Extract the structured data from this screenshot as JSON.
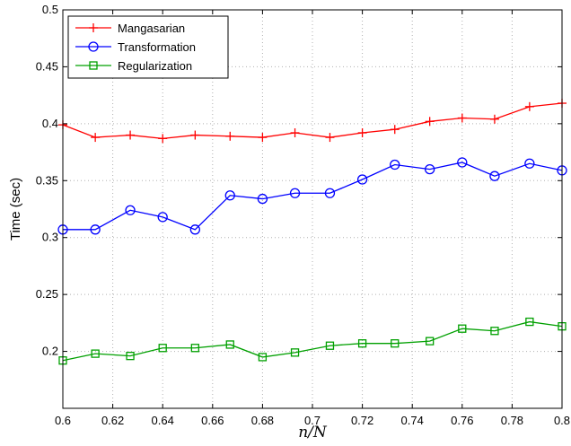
{
  "chart_data": {
    "type": "line",
    "title": "",
    "xlabel": "n/N",
    "ylabel": "Time (sec)",
    "xlim": [
      0.6,
      0.8
    ],
    "ylim": [
      0.15,
      0.5
    ],
    "grid": true,
    "legend_position": "top-left",
    "x": [
      0.6,
      0.613,
      0.627,
      0.64,
      0.653,
      0.667,
      0.68,
      0.693,
      0.707,
      0.72,
      0.733,
      0.747,
      0.76,
      0.773,
      0.787,
      0.8
    ],
    "xticks": [
      "0.6",
      "0.62",
      "0.64",
      "0.66",
      "0.68",
      "0.7",
      "0.72",
      "0.74",
      "0.76",
      "0.78",
      "0.8"
    ],
    "xtick_values": [
      0.6,
      0.62,
      0.64,
      0.66,
      0.68,
      0.7,
      0.72,
      0.74,
      0.76,
      0.78,
      0.8
    ],
    "yticks": [
      "0.2",
      "0.25",
      "0.3",
      "0.35",
      "0.4",
      "0.45",
      "0.5"
    ],
    "ytick_values": [
      0.2,
      0.25,
      0.3,
      0.35,
      0.4,
      0.45,
      0.5
    ],
    "series": [
      {
        "name": "Mangasarian",
        "color": "#ff0000",
        "marker": "plus",
        "values": [
          0.399,
          0.388,
          0.39,
          0.387,
          0.39,
          0.389,
          0.388,
          0.392,
          0.388,
          0.392,
          0.395,
          0.402,
          0.405,
          0.404,
          0.415,
          0.418
        ]
      },
      {
        "name": "Transformation",
        "color": "#0000ff",
        "marker": "circle",
        "values": [
          0.307,
          0.307,
          0.324,
          0.318,
          0.307,
          0.337,
          0.334,
          0.339,
          0.339,
          0.351,
          0.364,
          0.36,
          0.366,
          0.354,
          0.365,
          0.359
        ]
      },
      {
        "name": "Regularization",
        "color": "#00a000",
        "marker": "square",
        "values": [
          0.192,
          0.198,
          0.196,
          0.203,
          0.203,
          0.206,
          0.195,
          0.199,
          0.205,
          0.207,
          0.207,
          0.209,
          0.22,
          0.218,
          0.226,
          0.222
        ]
      }
    ]
  }
}
